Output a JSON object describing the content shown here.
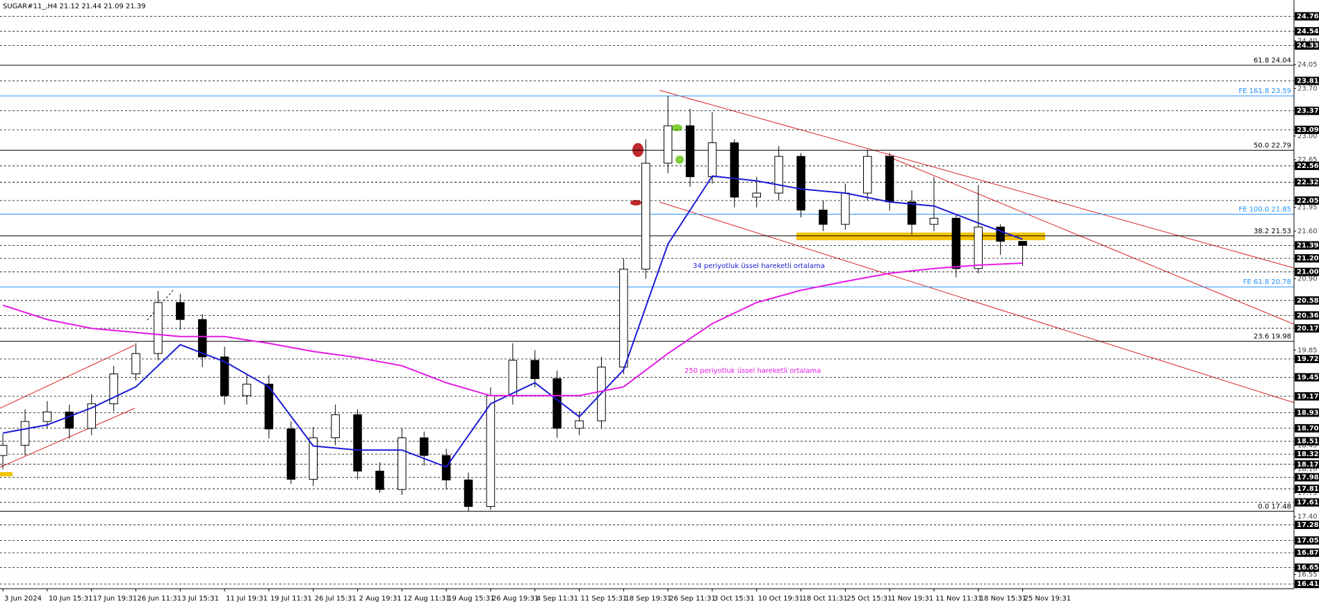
{
  "header": "SUGAR#11_,H4  21.12 21.44 21.09 21.39",
  "chart_data": {
    "type": "candlestick",
    "ylim": [
      16.34,
      25.0
    ],
    "xlim": [
      -0.13,
      58.24
    ],
    "yticks": [
      {
        "value": 24.4,
        "label": "24.40"
      },
      24.05,
      {
        "value": 23.7,
        "label": "23.70"
      },
      {
        "value": 23.0,
        "label": "23.00"
      },
      22.65,
      21.95,
      {
        "value": 21.6,
        "label": "21.60"
      },
      {
        "value": 20.9,
        "label": "20.90"
      },
      19.85,
      18.45,
      {
        "value": 18.1,
        "label": "18.10"
      },
      17.75,
      {
        "value": 17.4,
        "label": "17.40"
      },
      16.55
    ],
    "levels": [
      24.76,
      24.54,
      24.33,
      23.81,
      23.37,
      23.09,
      22.56,
      22.32,
      22.05,
      21.39,
      {
        "value": 21.2,
        "label": "21.20"
      },
      {
        "value": 21.0,
        "label": "21.00"
      },
      20.58,
      20.36,
      20.17,
      19.72,
      19.45,
      19.17,
      18.93,
      {
        "value": 18.7,
        "label": "18.70"
      },
      18.51,
      18.32,
      18.17,
      17.98,
      17.81,
      17.61,
      17.28,
      17.05,
      16.87,
      16.65,
      16.41
    ],
    "fib_lines": [
      {
        "label": "61.8 24.04",
        "value": 24.04,
        "color": "#000000"
      },
      {
        "label": "FE 161.8 23.59",
        "value": 23.59,
        "color": "#1e90ff"
      },
      {
        "label": "50.0 22.79",
        "value": 22.79,
        "color": "#000000"
      },
      {
        "label": "FE 100.0 21.85",
        "value": 21.85,
        "color": "#1e90ff"
      },
      {
        "label": "38.2 21.53",
        "value": 21.53,
        "color": "#000000"
      },
      {
        "label": "FE 61.8 20.78",
        "value": 20.78,
        "color": "#1e90ff"
      },
      {
        "label": "23.6 19.98",
        "value": 19.98,
        "color": "#000000"
      },
      {
        "label": "0.0 17.48",
        "value": 17.48,
        "color": "#000000"
      }
    ],
    "xticks": [
      {
        "value": 0,
        "label": "3 Jun 2024"
      },
      {
        "value": 2,
        "label": "10 Jun 15:31"
      },
      {
        "value": 4,
        "label": "17 Jun 19:31"
      },
      {
        "value": 6,
        "label": "26 Jun 11:31"
      },
      {
        "value": 8,
        "label": "3 Jul 15:31"
      },
      {
        "value": 10,
        "label": "11 Jul 19:31"
      },
      {
        "value": 12,
        "label": "19 Jul 11:31"
      },
      {
        "value": 14,
        "label": "26 Jul 15:31"
      },
      {
        "value": 16,
        "label": "2 Aug 19:31"
      },
      {
        "value": 18,
        "label": "12 Aug 11:31"
      },
      {
        "value": 20,
        "label": "19 Aug 15:31"
      },
      {
        "value": 22,
        "label": "26 Aug 19:31"
      },
      {
        "value": 24,
        "label": "4 Sep 11:31"
      },
      {
        "value": 26,
        "label": "11 Sep 15:31"
      },
      {
        "value": 28,
        "label": "18 Sep 19:31"
      },
      {
        "value": 30,
        "label": "26 Sep 11:31"
      },
      {
        "value": 32,
        "label": "3 Oct 15:31"
      },
      {
        "value": 34,
        "label": "10 Oct 19:31"
      },
      {
        "value": 36,
        "label": "18 Oct 11:31"
      },
      {
        "value": 38,
        "label": "25 Oct 15:31"
      },
      {
        "value": 40,
        "label": "1 Nov 19:31"
      },
      {
        "value": 42,
        "label": "11 Nov 11:31"
      },
      {
        "value": 44,
        "label": "18 Nov 15:31"
      },
      {
        "value": 46,
        "label": "25 Nov 19:31"
      }
    ],
    "up_color": "#ffffff",
    "down_color": "#000000",
    "open": [
      18.3,
      18.45,
      18.8,
      18.94,
      18.7,
      19.06,
      19.5,
      19.8,
      20.55,
      20.3,
      19.75,
      19.18,
      19.35,
      18.69,
      17.95,
      18.56,
      18.9,
      18.07,
      17.8,
      18.56,
      18.3,
      17.94,
      17.55,
      19.18,
      19.7,
      19.43,
      18.7,
      18.81,
      19.6,
      21.04,
      22.6,
      23.15,
      22.4,
      22.9,
      22.1,
      22.16,
      22.7,
      21.91,
      21.7,
      22.16,
      22.7,
      22.03,
      21.7,
      21.79,
      21.05,
      21.66,
      21.45
    ],
    "high": [
      18.62,
      18.98,
      19.1,
      19.05,
      19.2,
      19.62,
      19.95,
      20.72,
      20.68,
      20.38,
      19.9,
      19.5,
      19.48,
      18.8,
      18.72,
      19.05,
      18.98,
      18.2,
      18.7,
      18.65,
      18.4,
      18.05,
      19.3,
      19.95,
      19.85,
      19.55,
      18.95,
      19.75,
      21.2,
      22.95,
      23.59,
      23.4,
      23.35,
      22.95,
      22.4,
      22.85,
      22.75,
      22.05,
      22.3,
      22.8,
      22.75,
      22.2,
      22.4,
      21.85,
      22.28,
      21.7,
      21.44
    ],
    "low": [
      18.1,
      18.3,
      18.7,
      18.55,
      18.6,
      18.95,
      19.4,
      19.7,
      20.15,
      19.6,
      19.05,
      19.05,
      18.55,
      17.88,
      17.85,
      18.45,
      17.95,
      17.75,
      17.72,
      18.15,
      17.8,
      17.48,
      17.5,
      19.05,
      19.3,
      18.56,
      18.6,
      18.7,
      19.5,
      20.9,
      22.45,
      22.25,
      22.3,
      21.95,
      21.95,
      22.05,
      21.8,
      21.6,
      21.62,
      22.05,
      21.9,
      21.55,
      21.6,
      20.92,
      20.98,
      21.25,
      21.09
    ],
    "close": [
      18.45,
      18.8,
      18.94,
      18.7,
      19.06,
      19.5,
      19.8,
      20.55,
      20.3,
      19.75,
      19.18,
      19.35,
      18.69,
      17.95,
      18.56,
      18.9,
      18.07,
      17.8,
      18.56,
      18.3,
      17.94,
      17.55,
      19.18,
      19.7,
      19.43,
      18.7,
      18.81,
      19.6,
      21.04,
      22.6,
      23.15,
      22.4,
      22.9,
      22.1,
      22.16,
      22.7,
      21.91,
      21.7,
      22.16,
      22.7,
      22.03,
      21.7,
      21.79,
      21.05,
      21.66,
      21.45,
      21.39
    ],
    "series": [
      {
        "name": "34 periyotluk üssel hareketli ortalama",
        "color": "#1a1ad6",
        "x": [
          0,
          2,
          4,
          6,
          8,
          10,
          12,
          14,
          16,
          18,
          20,
          22,
          24,
          26,
          28,
          30,
          32,
          34,
          36,
          38,
          40,
          42,
          44,
          46
        ],
        "values": [
          18.63,
          18.75,
          19.0,
          19.31,
          19.93,
          19.68,
          19.31,
          18.44,
          18.38,
          18.38,
          18.13,
          19.06,
          19.37,
          18.87,
          19.56,
          21.41,
          22.41,
          22.34,
          22.22,
          22.16,
          22.03,
          21.97,
          21.72,
          21.48
        ]
      },
      {
        "name": "250 periyotluk üssel hareketli ortalama",
        "color": "#e619e6",
        "x": [
          0,
          2,
          4,
          6,
          8,
          10,
          12,
          14,
          16,
          18,
          20,
          22,
          24,
          26,
          28,
          30,
          32,
          34,
          36,
          38,
          40,
          42,
          44,
          46
        ],
        "values": [
          20.51,
          20.3,
          20.17,
          20.11,
          20.05,
          20.05,
          19.95,
          19.83,
          19.74,
          19.62,
          19.37,
          19.18,
          19.18,
          19.18,
          19.31,
          19.8,
          20.24,
          20.55,
          20.73,
          20.86,
          20.98,
          21.05,
          21.1,
          21.13
        ]
      }
    ]
  }
}
